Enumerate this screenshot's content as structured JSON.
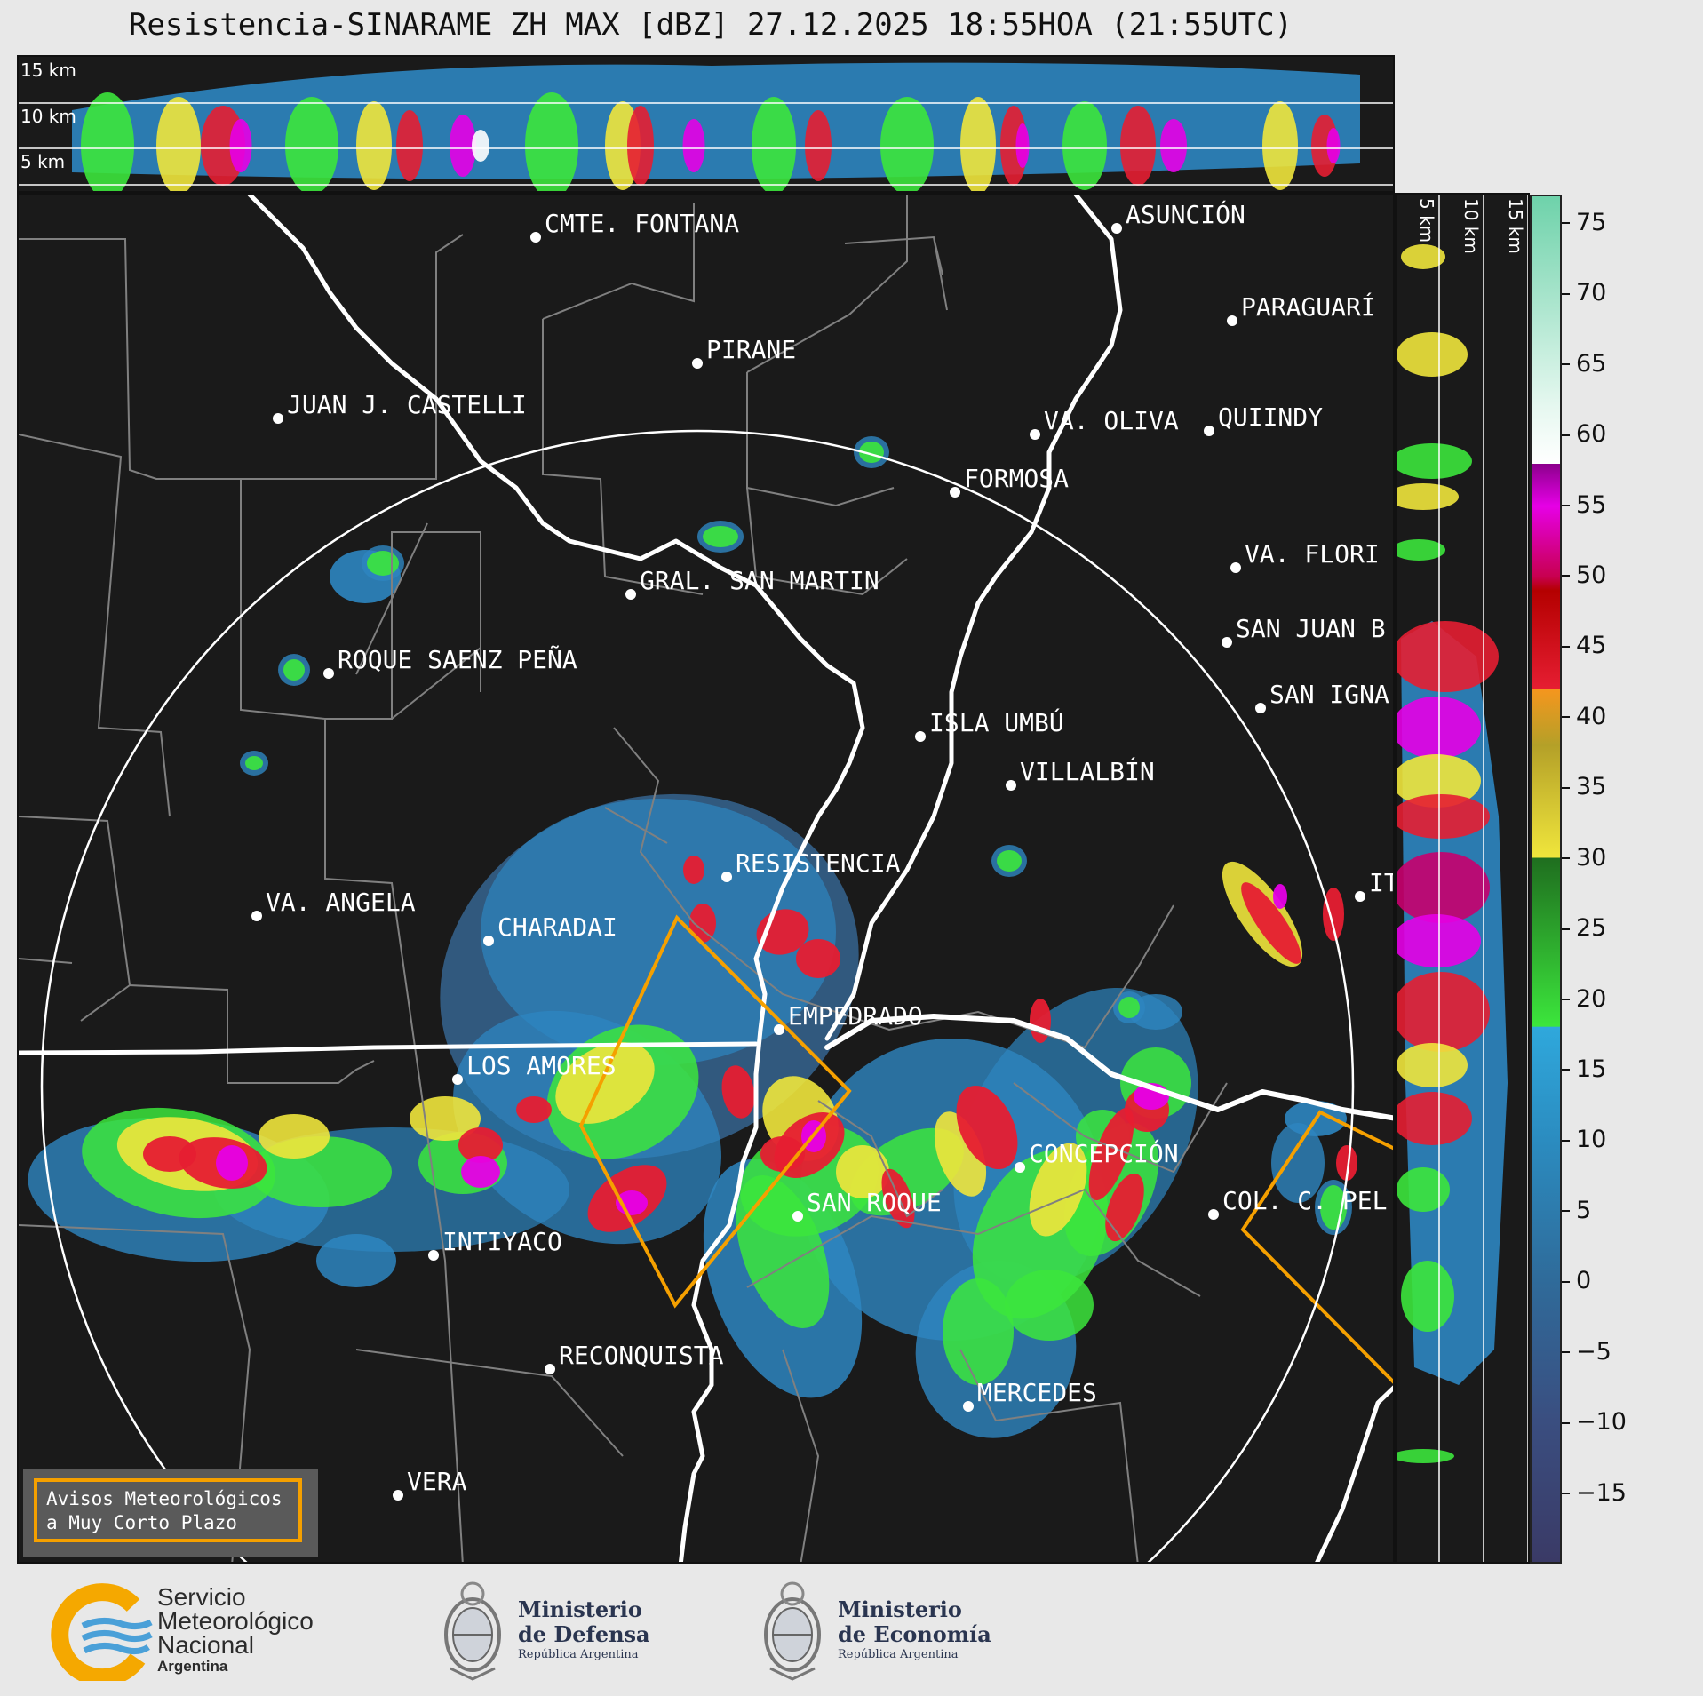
{
  "title": "Resistencia-SINARAME ZH MAX [dBZ] 27.12.2025 18:55HOA (21:55UTC)",
  "top_panel": {
    "height_labels": [
      "15 km",
      "10 km",
      "5 km"
    ]
  },
  "side_panel": {
    "height_labels": [
      "5 km",
      "10 km",
      "15 km"
    ]
  },
  "colorbar": {
    "ticks": [
      "75",
      "70",
      "65",
      "60",
      "55",
      "50",
      "45",
      "40",
      "35",
      "30",
      "25",
      "20",
      "15",
      "10",
      "5",
      "0",
      "−5",
      "−10",
      "−15"
    ],
    "tick_values": [
      75,
      70,
      65,
      60,
      55,
      50,
      45,
      40,
      35,
      30,
      25,
      20,
      15,
      10,
      5,
      0,
      -5,
      -10,
      -15
    ],
    "range": [
      -20,
      77
    ],
    "stops": [
      {
        "v": -20,
        "c": "#3a3a66"
      },
      {
        "v": -10,
        "c": "#3a4e80"
      },
      {
        "v": 0,
        "c": "#2f6b9a"
      },
      {
        "v": 10,
        "c": "#2b8cc0"
      },
      {
        "v": 18,
        "c": "#2fa8dc"
      },
      {
        "v": 18.01,
        "c": "#3ce63c"
      },
      {
        "v": 30,
        "c": "#1f6e1f"
      },
      {
        "v": 30.01,
        "c": "#f0e63c"
      },
      {
        "v": 38,
        "c": "#b4a028"
      },
      {
        "v": 42,
        "c": "#f5961e"
      },
      {
        "v": 42.01,
        "c": "#e61e32"
      },
      {
        "v": 49,
        "c": "#b40000"
      },
      {
        "v": 50,
        "c": "#c80050"
      },
      {
        "v": 55,
        "c": "#e600e6"
      },
      {
        "v": 58,
        "c": "#8c008c"
      },
      {
        "v": 58.01,
        "c": "#ffffff"
      },
      {
        "v": 62,
        "c": "#e6f8f0"
      },
      {
        "v": 77,
        "c": "#6ed2aa"
      }
    ]
  },
  "cities": [
    {
      "name": "CMTE. FONTANA"
    },
    {
      "name": "ASUNCIÓN"
    },
    {
      "name": "PARAGUARÍ"
    },
    {
      "name": "PIRANE"
    },
    {
      "name": "JUAN J. CASTELLI"
    },
    {
      "name": "VA. OLIVA"
    },
    {
      "name": "QUIINDY"
    },
    {
      "name": "FORMOSA"
    },
    {
      "name": "VA. FLORI"
    },
    {
      "name": "GRAL. SAN MARTIN"
    },
    {
      "name": "SAN JUAN B"
    },
    {
      "name": "ROQUE SAENZ PEÑA"
    },
    {
      "name": "SAN IGNA"
    },
    {
      "name": "ISLA UMBÚ"
    },
    {
      "name": "VILLALBÍN"
    },
    {
      "name": "RESISTENCIA"
    },
    {
      "name": "VA. ANGELA"
    },
    {
      "name": "IT"
    },
    {
      "name": "CHARADAI"
    },
    {
      "name": "EMPEDRADO"
    },
    {
      "name": "LOS AMORES"
    },
    {
      "name": "CONCEPCIÓN"
    },
    {
      "name": "COL. C. PEL"
    },
    {
      "name": "SAN ROQUE"
    },
    {
      "name": "INTIYACO"
    },
    {
      "name": "RECONQUISTA"
    },
    {
      "name": "MERCEDES"
    },
    {
      "name": "VERA"
    }
  ],
  "warning_legend": {
    "line1": "Avisos Meteorológicos",
    "line2": "a Muy Corto Plazo"
  },
  "logos": {
    "smn": {
      "line1": "Servicio",
      "line2": "Meteorológico",
      "line3": "Nacional",
      "line4": "Argentina"
    },
    "defensa": {
      "line1": "Ministerio",
      "line2": "de Defensa",
      "line3": "República Argentina"
    },
    "economia": {
      "line1": "Ministerio",
      "line2": "de Economía",
      "line3": "República Argentina"
    }
  }
}
